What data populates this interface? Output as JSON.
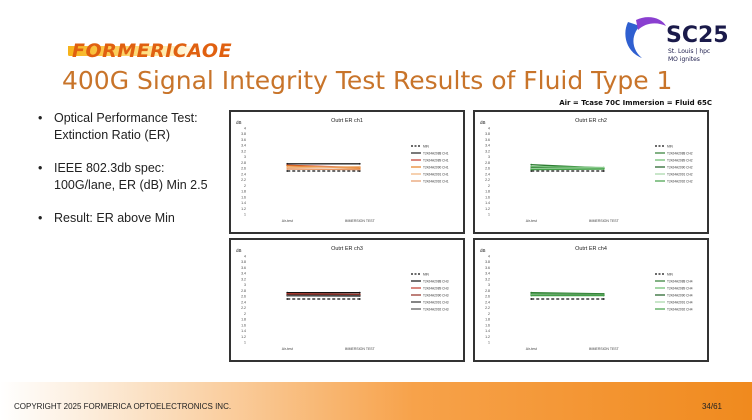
{
  "logo": {
    "text": "FORMERICAOE"
  },
  "conference": {
    "name": "SC25",
    "sub1": "St. Louis | hpc",
    "sub2": "MO ignites"
  },
  "title": "400G Signal Integrity Test Results of Fluid Type 1",
  "conditions": "Air = Tcase 70C   Immersion = Fluid 65C",
  "bullets": [
    {
      "line1": "Optical Performance Test:",
      "line2": "Extinction Ratio (ER)"
    },
    {
      "line1": "IEEE 802.3db spec:",
      "line2": "100G/lane, ER (dB) Min 2.5"
    },
    {
      "line1": "Result: ER above Min",
      "line2": ""
    }
  ],
  "footer": {
    "copyright": "COPYRIGHT 2025 FORMERICA OPTOELECTRONICS INC.",
    "page": "34/61"
  },
  "colors": {
    "title": "#c8742a",
    "logo": "#e06010",
    "accent": "#f08a1e"
  },
  "chart_data": [
    {
      "type": "line",
      "title": "Outrt ER ch1",
      "ylabel": "dB",
      "categories": [
        "Air-test",
        "IMMERSION TEST"
      ],
      "ylim": [
        1,
        4
      ],
      "yticks": [
        "4",
        "3.8",
        "3.6",
        "3.4",
        "3.2",
        "3",
        "2.8",
        "2.6",
        "2.4",
        "2.2",
        "2",
        "1.8",
        "1.6",
        "1.4",
        "1.2",
        "1"
      ],
      "series": [
        {
          "name": "MIN",
          "values": [
            2.5,
            2.5
          ],
          "color": "#111111",
          "dashed": true
        },
        {
          "name": "T2424A2088 CH1",
          "values": [
            2.75,
            2.75
          ],
          "color": "#222222"
        },
        {
          "name": "T2424A2089 CH1",
          "values": [
            2.7,
            2.62
          ],
          "color": "#c0392b"
        },
        {
          "name": "T2424A2090 CH1",
          "values": [
            2.68,
            2.6
          ],
          "color": "#e67e22"
        },
        {
          "name": "T2424A2091 CH1",
          "values": [
            2.62,
            2.65
          ],
          "color": "#f0b27a"
        },
        {
          "name": "T2424A2092 CH1",
          "values": [
            2.57,
            2.55
          ],
          "color": "#e59866"
        }
      ]
    },
    {
      "type": "line",
      "title": "Outrt ER ch2",
      "ylabel": "dB",
      "categories": [
        "Air-test",
        "IMMERSION TEST"
      ],
      "ylim": [
        1,
        4
      ],
      "yticks": [
        "4",
        "3.8",
        "3.6",
        "3.4",
        "3.2",
        "3",
        "2.8",
        "2.6",
        "2.4",
        "2.2",
        "2",
        "1.8",
        "1.6",
        "1.4",
        "1.2",
        "1"
      ],
      "series": [
        {
          "name": "MIN",
          "values": [
            2.5,
            2.5
          ],
          "color": "#111111",
          "dashed": true
        },
        {
          "name": "T2424A2088 CH2",
          "values": [
            2.72,
            2.6
          ],
          "color": "#2e7d32"
        },
        {
          "name": "T2424A2089 CH2",
          "values": [
            2.65,
            2.62
          ],
          "color": "#66bb6a"
        },
        {
          "name": "T2424A2090 CH2",
          "values": [
            2.6,
            2.58
          ],
          "color": "#1b5e20"
        },
        {
          "name": "T2424A2091 CH2",
          "values": [
            2.58,
            2.6
          ],
          "color": "#a5d6a7"
        },
        {
          "name": "T2424A2092 CH2",
          "values": [
            2.55,
            2.57
          ],
          "color": "#43a047"
        }
      ]
    },
    {
      "type": "line",
      "title": "Outrt ER ch3",
      "ylabel": "dB",
      "categories": [
        "Air-test",
        "IMMERSION TEST"
      ],
      "ylim": [
        1,
        4
      ],
      "yticks": [
        "4",
        "3.8",
        "3.6",
        "3.4",
        "3.2",
        "3",
        "2.8",
        "2.6",
        "2.4",
        "2.2",
        "2",
        "1.8",
        "1.6",
        "1.4",
        "1.2",
        "1"
      ],
      "series": [
        {
          "name": "MIN",
          "values": [
            2.5,
            2.5
          ],
          "color": "#111111",
          "dashed": true
        },
        {
          "name": "T2424A2088 CH3",
          "values": [
            2.72,
            2.72
          ],
          "color": "#111111"
        },
        {
          "name": "T2424A2089 CH3",
          "values": [
            2.68,
            2.66
          ],
          "color": "#c0392b"
        },
        {
          "name": "T2424A2090 CH3",
          "values": [
            2.66,
            2.64
          ],
          "color": "#922b21"
        },
        {
          "name": "T2424A2091 CH3",
          "values": [
            2.63,
            2.62
          ],
          "color": "#333333"
        },
        {
          "name": "T2424A2092 CH3",
          "values": [
            2.61,
            2.6
          ],
          "color": "#555555"
        }
      ]
    },
    {
      "type": "line",
      "title": "Outrt ER ch4",
      "ylabel": "dB",
      "categories": [
        "Air-test",
        "IMMERSION TEST"
      ],
      "ylim": [
        1,
        4
      ],
      "yticks": [
        "4",
        "3.8",
        "3.6",
        "3.4",
        "3.2",
        "3",
        "2.8",
        "2.6",
        "2.4",
        "2.2",
        "2",
        "1.8",
        "1.6",
        "1.4",
        "1.2",
        "1"
      ],
      "series": [
        {
          "name": "MIN",
          "values": [
            2.5,
            2.5
          ],
          "color": "#111111",
          "dashed": true
        },
        {
          "name": "T2424A2088 CH4",
          "values": [
            2.72,
            2.68
          ],
          "color": "#2e7d32"
        },
        {
          "name": "T2424A2089 CH4",
          "values": [
            2.68,
            2.65
          ],
          "color": "#66bb6a"
        },
        {
          "name": "T2424A2090 CH4",
          "values": [
            2.66,
            2.64
          ],
          "color": "#1b5e20"
        },
        {
          "name": "T2424A2091 CH4",
          "values": [
            2.64,
            2.63
          ],
          "color": "#a5d6a7"
        },
        {
          "name": "T2424A2092 CH4",
          "values": [
            2.62,
            2.62
          ],
          "color": "#43a047"
        }
      ]
    }
  ]
}
